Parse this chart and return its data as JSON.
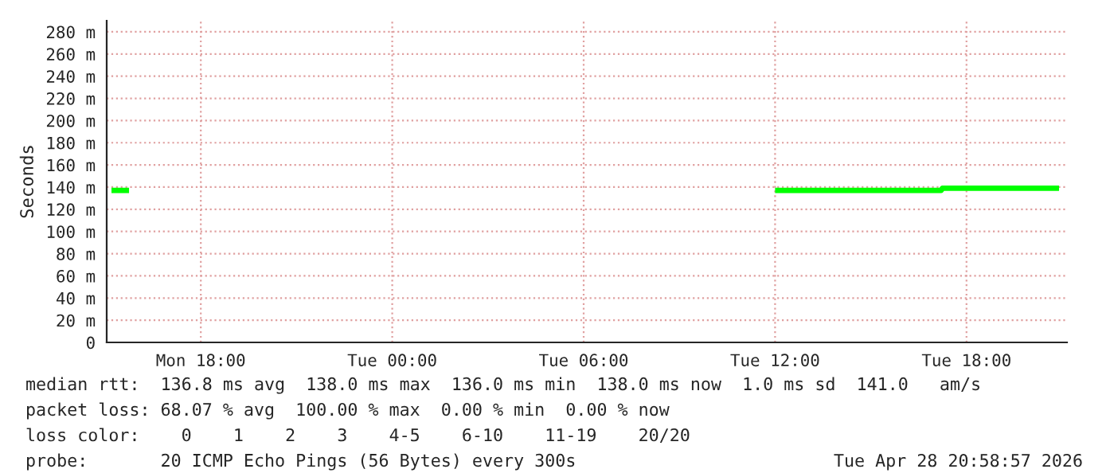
{
  "chart_data": {
    "type": "line",
    "ylabel": "Seconds",
    "x": [
      "2026-04-27T15:12",
      "2026-04-27T15:45",
      "2026-04-28T01:00",
      "2026-04-28T12:00",
      "2026-04-28T17:12",
      "2026-04-28T17:15",
      "2026-04-28T20:54"
    ],
    "series": [
      {
        "color": "#00ff00",
        "values": [
          137,
          137,
          null,
          137,
          137,
          139,
          139
        ]
      }
    ],
    "xlim": [
      "2026-04-27T15:03",
      "2026-04-28T21:09"
    ],
    "xticks": [
      {
        "value": "2026-04-27T18:00",
        "label": "Mon 18:00"
      },
      {
        "value": "2026-04-28T00:00",
        "label": "Tue 00:00"
      },
      {
        "value": "2026-04-28T06:00",
        "label": "Tue 06:00"
      },
      {
        "value": "2026-04-28T12:00",
        "label": "Tue 12:00"
      },
      {
        "value": "2026-04-28T18:00",
        "label": "Tue 18:00"
      }
    ],
    "ylim": [
      0,
      290
    ],
    "yticks": [
      0,
      {
        "value": 20,
        "label": "20 m"
      },
      {
        "value": 40,
        "label": "40 m"
      },
      {
        "value": 60,
        "label": "60 m"
      },
      {
        "value": 80,
        "label": "80 m"
      },
      {
        "value": 100,
        "label": "100 m"
      },
      {
        "value": 120,
        "label": "120 m"
      },
      {
        "value": 140,
        "label": "140 m"
      },
      {
        "value": 160,
        "label": "160 m"
      },
      {
        "value": 180,
        "label": "180 m"
      },
      {
        "value": 200,
        "label": "200 m"
      },
      {
        "value": 220,
        "label": "220 m"
      },
      {
        "value": 240,
        "label": "240 m"
      },
      {
        "value": 260,
        "label": "260 m"
      },
      {
        "value": 280,
        "label": "280 m"
      }
    ],
    "grid": true,
    "annotations": [
      "median rtt:  136.8 ms avg  138.0 ms max  136.0 ms min  138.0 ms now  1.0 ms sd  141.0   am/s",
      "packet loss: 68.07 % avg  100.00 % max  0.00 % min  0.00 % now",
      "loss color:    0    1    2    3    4-5    6-10    11-19    20/20",
      "probe:       20 ICMP Echo Pings (56 Bytes) every 300s",
      "Tue Apr 28 20:58:57 2026"
    ]
  }
}
